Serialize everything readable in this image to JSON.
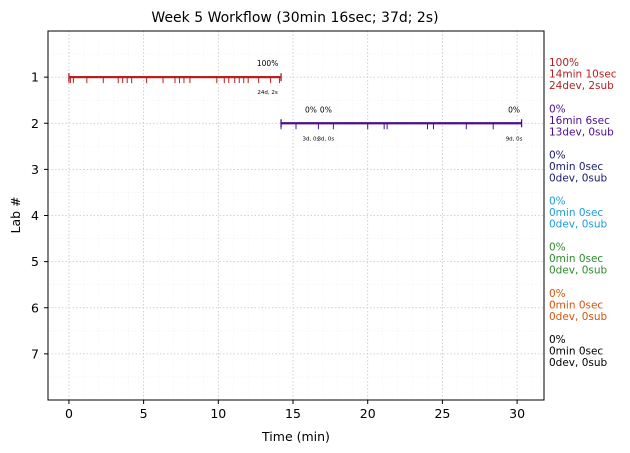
{
  "chart_data": {
    "type": "timeline",
    "title": "Week 5 Workflow (30min 16sec; 37d; 2s)",
    "xlabel": "Time (min)",
    "ylabel": "Lab #",
    "xlim": [
      -1.4,
      31.8
    ],
    "ylim": [
      8.0,
      0.0
    ],
    "xticks": [
      0,
      5,
      10,
      15,
      20,
      25,
      30
    ],
    "yticks": [
      1,
      2,
      3,
      4,
      5,
      6,
      7
    ],
    "grid": true,
    "labs": [
      {
        "lab": 1,
        "color": "#b22222",
        "start": 0.0,
        "end": 14.2,
        "events": [
          0.0,
          0.1,
          0.3,
          1.2,
          2.3,
          3.3,
          3.6,
          3.9,
          4.2,
          5.2,
          6.3,
          7.1,
          7.4,
          7.7,
          8.1,
          9.9,
          10.4,
          10.7,
          11.1,
          11.4,
          11.7,
          12.0,
          12.7,
          13.5,
          14.1
        ],
        "marks": [
          {
            "x": 13.3,
            "pct": "100%",
            "detail": "24d, 2s"
          }
        ],
        "summary": [
          "100%",
          "14min 10sec",
          "24dev, 2sub"
        ]
      },
      {
        "lab": 2,
        "color": "#4b0f8c",
        "start": 14.2,
        "end": 30.3,
        "events": [
          14.2,
          15.2,
          16.7,
          17.7,
          20.0,
          21.1,
          21.3,
          24.0,
          24.4,
          26.6,
          28.4
        ],
        "marks": [
          {
            "x": 16.2,
            "pct": "0%",
            "detail": "3d, 0s"
          },
          {
            "x": 17.2,
            "pct": "0%",
            "detail": "3d, 0s"
          },
          {
            "x": 29.8,
            "pct": "0%",
            "detail": "9d, 0s"
          }
        ],
        "summary": [
          "0%",
          "16min 6sec",
          "13dev, 0sub"
        ]
      },
      {
        "lab": 3,
        "color": "#1a1a6e",
        "summary": [
          "0%",
          "0min 0sec",
          "0dev, 0sub"
        ]
      },
      {
        "lab": 4,
        "color": "#1e9bd7",
        "summary": [
          "0%",
          "0min 0sec",
          "0dev, 0sub"
        ]
      },
      {
        "lab": 5,
        "color": "#2e8b2e",
        "summary": [
          "0%",
          "0min 0sec",
          "0dev, 0sub"
        ]
      },
      {
        "lab": 6,
        "color": "#d2560a",
        "summary": [
          "0%",
          "0min 0sec",
          "0dev, 0sub"
        ]
      },
      {
        "lab": 7,
        "color": "#000000",
        "summary": [
          "0%",
          "0min 0sec",
          "0dev, 0sub"
        ]
      }
    ]
  }
}
